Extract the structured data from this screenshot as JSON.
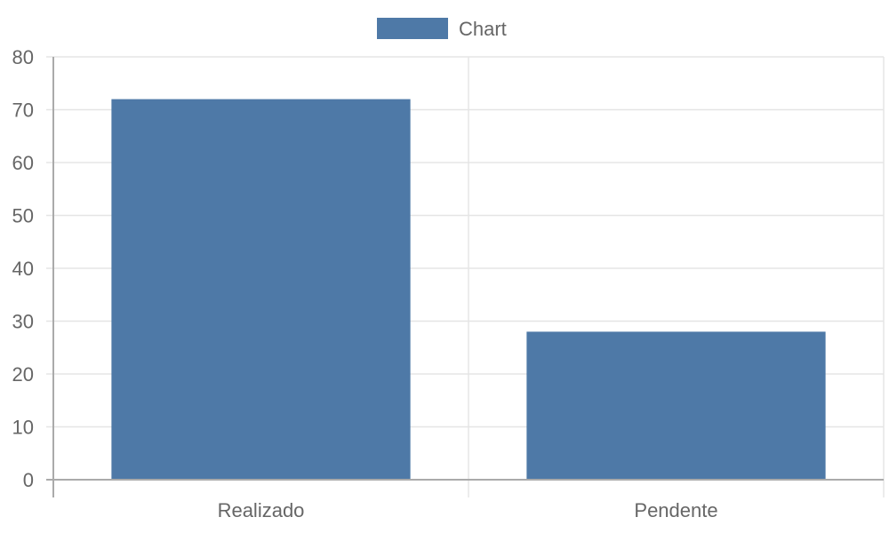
{
  "chart_data": {
    "type": "bar",
    "categories": [
      "Realizado",
      "Pendente"
    ],
    "series": [
      {
        "name": "Chart",
        "values": [
          72,
          28
        ],
        "color": "#4e79a7"
      }
    ],
    "ylim": [
      0,
      80
    ],
    "y_ticks": [
      0,
      10,
      20,
      30,
      40,
      50,
      60,
      70,
      80
    ],
    "legend_position": "top",
    "grid": true,
    "colors": {
      "grid": "#e5e5e5",
      "axis": "#aaaaaa",
      "text": "#666666"
    }
  }
}
